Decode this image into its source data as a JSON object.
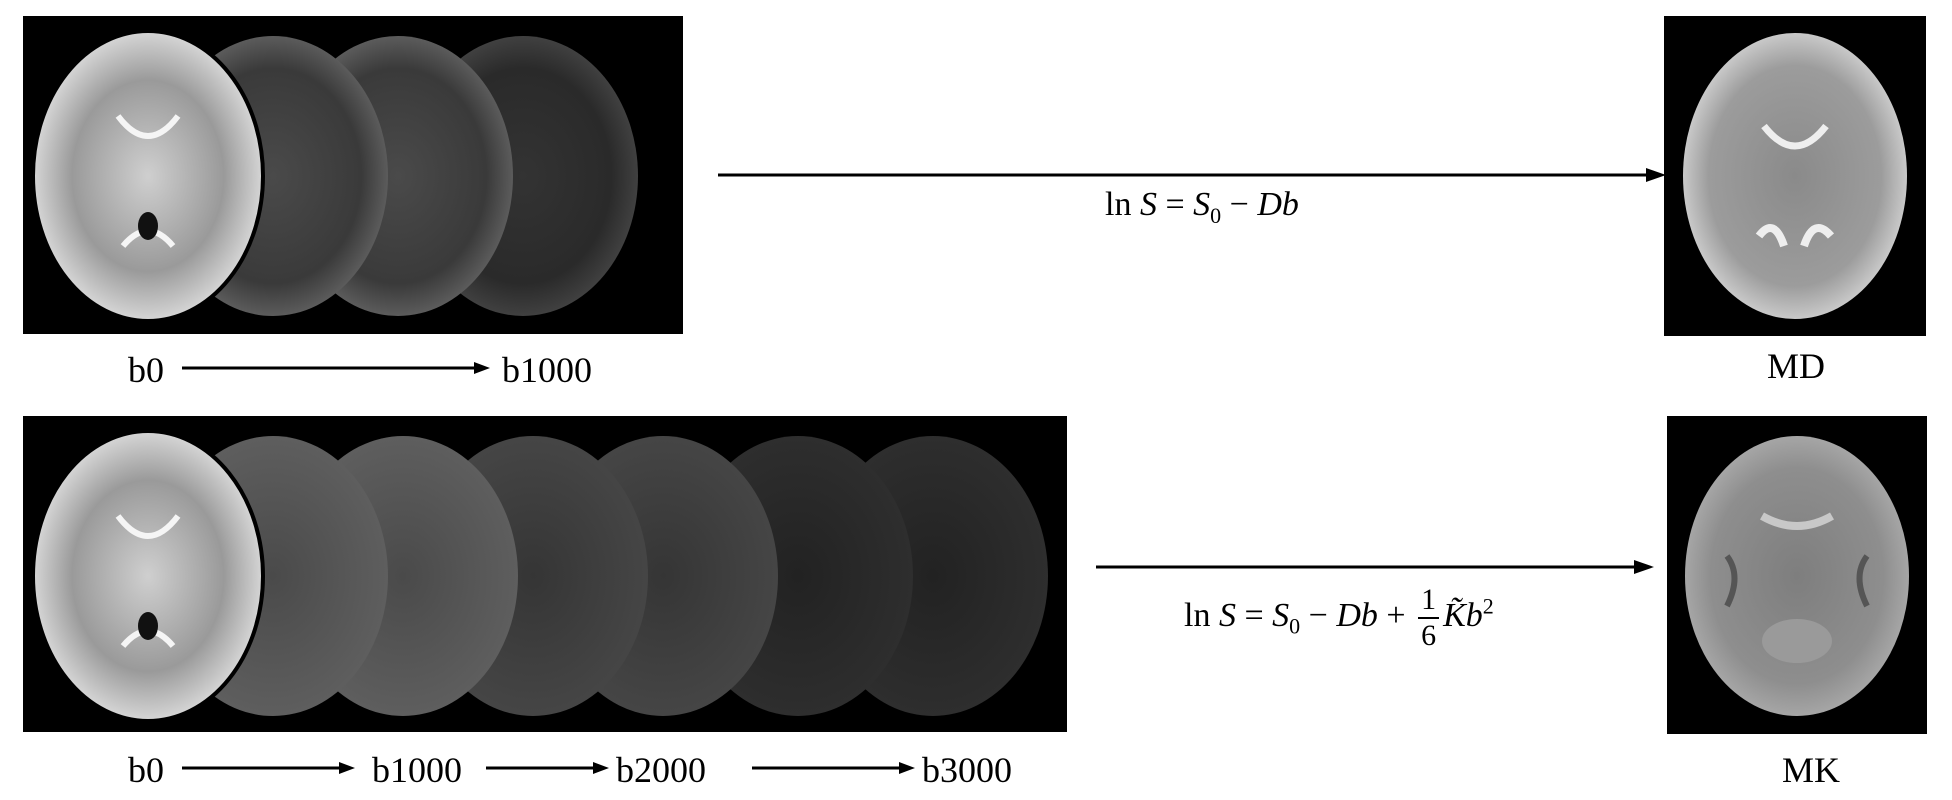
{
  "row1": {
    "labels": {
      "start": "b0",
      "end": "b1000"
    },
    "equation": {
      "lhs": "ln",
      "var": "S",
      "eq": "=",
      "s0": "S",
      "s0_sub": "0",
      "minus": "−",
      "db": "Db"
    },
    "output_label": "MD"
  },
  "row2": {
    "labels": {
      "b0": "b0",
      "b1000": "b1000",
      "b2000": "b2000",
      "b3000": "b3000"
    },
    "equation": {
      "lhs": "ln",
      "var": "S",
      "eq": "=",
      "s0": "S",
      "s0_sub": "0",
      "minus": "−",
      "db": "Db",
      "plus": "+",
      "frac_num": "1",
      "frac_den": "6",
      "k": "K̃",
      "b": "b",
      "b_sup": "2"
    },
    "output_label": "MK"
  },
  "colors": {
    "background": "#ffffff",
    "panel": "#000000",
    "arrow": "#000000"
  }
}
